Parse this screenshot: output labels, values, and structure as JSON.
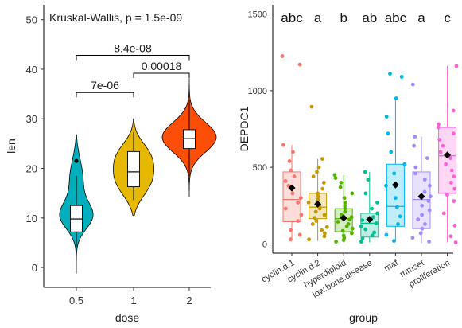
{
  "chart_data": [
    {
      "type": "violin",
      "annotation": "Kruskal-Wallis, p = 1.5e-09",
      "xlabel": "dose",
      "ylabel": "len",
      "categories": [
        "0.5",
        "1",
        "2"
      ],
      "ylim": [
        -4,
        53
      ],
      "yticks": [
        0,
        10,
        20,
        30,
        40,
        50
      ],
      "grid": false,
      "series": [
        {
          "category": "0.5",
          "color": "#00AFBB",
          "range": [
            -1.2,
            26.8
          ],
          "box": {
            "q1": 7.2,
            "median": 9.8,
            "q3": 12.5,
            "whisker_low": 4.2,
            "whisker_high": 18.5
          },
          "outliers": [
            21.5
          ]
        },
        {
          "category": "1",
          "color": "#E7B800",
          "range": [
            10.5,
            30
          ],
          "box": {
            "q1": 16.3,
            "median": 19.3,
            "q3": 23.4,
            "whisker_low": 13.6,
            "whisker_high": 27.3
          },
          "outliers": []
        },
        {
          "category": "2",
          "color": "#FC4E07",
          "range": [
            14.2,
            38.2
          ],
          "box": {
            "q1": 24.0,
            "median": 26.0,
            "q3": 27.8,
            "whisker_low": 18.5,
            "whisker_high": 33.9
          },
          "outliers": []
        }
      ],
      "comparisons": [
        {
          "from": "0.5",
          "to": "1",
          "label": "7e-06",
          "y": 35.3
        },
        {
          "from": "1",
          "to": "2",
          "label": "0.00018",
          "y": 39.2
        },
        {
          "from": "0.5",
          "to": "2",
          "label": "8.4e-08",
          "y": 42.8
        }
      ]
    },
    {
      "type": "box",
      "xlabel": "group",
      "ylabel": "DEPDC1",
      "categories": [
        "cyclin.d.1",
        "cyclin.d.2",
        "hyperdiploid",
        "low.bone.disease",
        "maf",
        "mmset",
        "proliferation"
      ],
      "letters": [
        "abc",
        "a",
        "b",
        "ab",
        "abc",
        "a",
        "c"
      ],
      "ylim": [
        -60,
        1560
      ],
      "yticks": [
        0,
        500,
        1000,
        1500
      ],
      "grid": false,
      "series": [
        {
          "category": "cyclin.d.1",
          "color": "#F8766D",
          "box": {
            "q1": 145,
            "median": 290,
            "q3": 470,
            "whisker_low": 20,
            "whisker_high": 645
          },
          "mean": 365,
          "points": [
            1225,
            1170,
            645,
            600,
            540,
            480,
            440,
            410,
            380,
            330,
            300,
            270,
            230,
            190,
            150,
            90,
            60,
            30
          ]
        },
        {
          "category": "cyclin.d.2",
          "color": "#C49A00",
          "box": {
            "q1": 165,
            "median": 240,
            "q3": 330,
            "whisker_low": 20,
            "whisker_high": 555
          },
          "mean": 260,
          "points": [
            895,
            555,
            500,
            470,
            440,
            400,
            360,
            330,
            310,
            290,
            270,
            250,
            230,
            210,
            190,
            170,
            150,
            130,
            110,
            90,
            70,
            50,
            30
          ]
        },
        {
          "category": "hyperdiploid",
          "color": "#53B400",
          "box": {
            "q1": 80,
            "median": 165,
            "q3": 230,
            "whisker_low": 10,
            "whisker_high": 450
          },
          "mean": 170,
          "points": [
            450,
            430,
            400,
            370,
            330,
            300,
            270,
            250,
            230,
            210,
            190,
            175,
            160,
            145,
            130,
            115,
            100,
            85,
            70,
            55,
            40,
            25,
            15
          ]
        },
        {
          "category": "low.bone.disease",
          "color": "#00C094",
          "box": {
            "q1": 45,
            "median": 135,
            "q3": 200,
            "whisker_low": 10,
            "whisker_high": 470
          },
          "mean": 160,
          "points": [
            470,
            420,
            330,
            270,
            230,
            200,
            175,
            155,
            135,
            115,
            95,
            75,
            55,
            35,
            15
          ]
        },
        {
          "category": "maf",
          "color": "#00B6EB",
          "box": {
            "q1": 115,
            "median": 245,
            "q3": 520,
            "whisker_low": 20,
            "whisker_high": 945
          },
          "mean": 385,
          "points": [
            1110,
            1090,
            950,
            830,
            720,
            600,
            520,
            460,
            380,
            300,
            240,
            180,
            130,
            60,
            20
          ]
        },
        {
          "category": "mmset",
          "color": "#A58AFF",
          "box": {
            "q1": 100,
            "median": 290,
            "q3": 470,
            "whisker_low": 5,
            "whisker_high": 700
          },
          "mean": 310,
          "points": [
            1040,
            700,
            640,
            560,
            500,
            460,
            420,
            380,
            340,
            310,
            280,
            250,
            220,
            190,
            160,
            130,
            100,
            70,
            40,
            15
          ]
        },
        {
          "category": "proliferation",
          "color": "#FB61D7",
          "box": {
            "q1": 330,
            "median": 575,
            "q3": 760,
            "whisker_low": 10,
            "whisker_high": 1160
          },
          "mean": 580,
          "points": [
            1160,
            870,
            780,
            760,
            720,
            680,
            640,
            600,
            560,
            520,
            480,
            440,
            400,
            360,
            320,
            280,
            200,
            120,
            50,
            10
          ]
        }
      ]
    }
  ]
}
